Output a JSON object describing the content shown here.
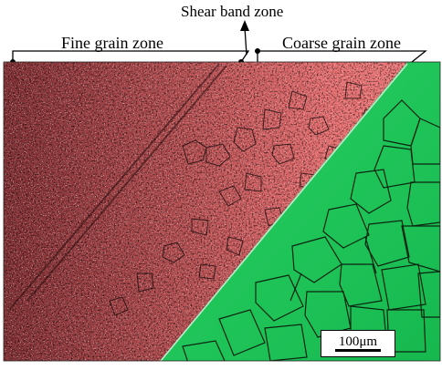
{
  "annotations": {
    "shear_band": "Shear band zone",
    "fine_grain": "Fine grain zone",
    "coarse_grain": "Coarse grain zone"
  },
  "scale_bar": {
    "label": "100μm"
  },
  "colors": {
    "fine_grain_phase": "#e8686a",
    "coarse_grain_phase": "#1fc45a",
    "boundary": "#111111",
    "background": "#ffffff"
  }
}
